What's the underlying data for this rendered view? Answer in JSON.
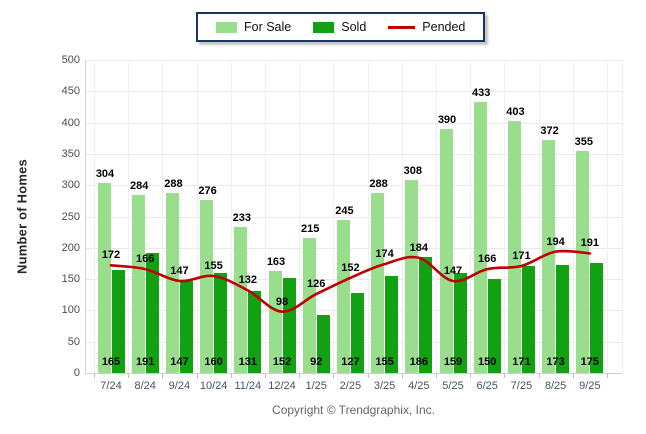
{
  "legend": {
    "for_sale": "For Sale",
    "sold": "Sold",
    "pended": "Pended"
  },
  "y_axis": {
    "title": "Number of Homes",
    "min": 0,
    "max": 500,
    "step": 50
  },
  "footer": {
    "copyright": "Copyright © Trendgraphix, Inc."
  },
  "colors": {
    "for_sale": "#98DE8C",
    "sold": "#12A112",
    "pended": "#C00000",
    "legend_border": "#17375E"
  },
  "chart_data": {
    "type": "bar",
    "title": "",
    "xlabel": "",
    "ylabel": "Number of Homes",
    "ylim": [
      0,
      500
    ],
    "ytick_step": 50,
    "grid": true,
    "legend_position": "top",
    "categories": [
      "7/24",
      "8/24",
      "9/24",
      "10/24",
      "11/24",
      "12/24",
      "1/25",
      "2/25",
      "3/25",
      "4/25",
      "5/25",
      "6/25",
      "7/25",
      "8/25",
      "9/25"
    ],
    "series": [
      {
        "name": "For Sale",
        "type": "bar",
        "color": "#98DE8C",
        "values": [
          304,
          284,
          288,
          276,
          233,
          163,
          215,
          245,
          288,
          308,
          390,
          433,
          403,
          372,
          355
        ]
      },
      {
        "name": "Sold",
        "type": "bar",
        "color": "#12A112",
        "values": [
          165,
          191,
          147,
          160,
          131,
          152,
          92,
          127,
          155,
          186,
          159,
          150,
          171,
          173,
          175
        ]
      },
      {
        "name": "Pended",
        "type": "line",
        "color": "#C00000",
        "values": [
          172,
          166,
          147,
          155,
          132,
          98,
          126,
          152,
          174,
          184,
          147,
          166,
          171,
          194,
          191
        ]
      }
    ]
  }
}
